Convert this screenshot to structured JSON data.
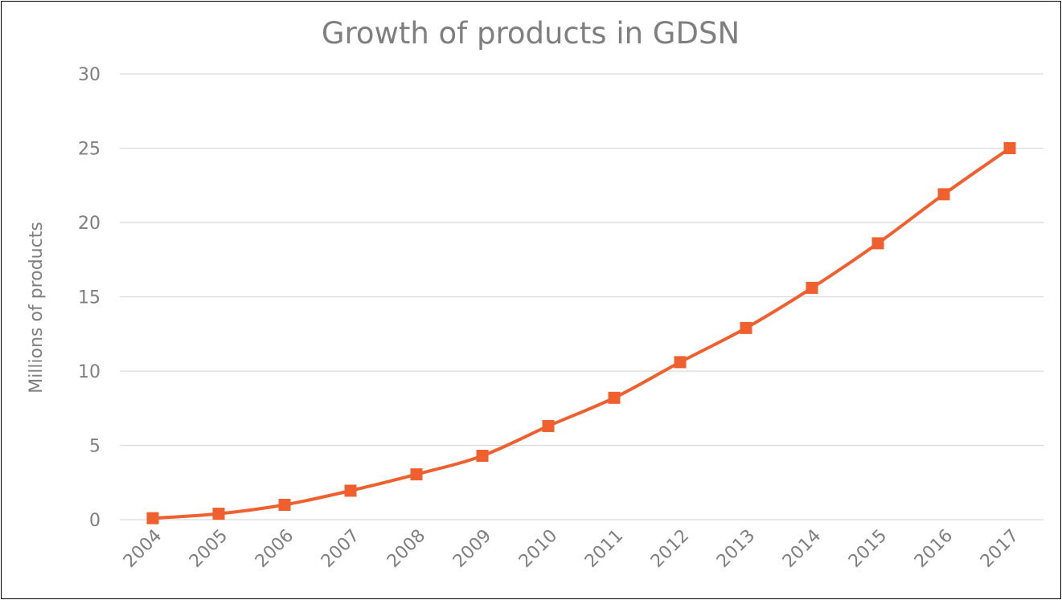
{
  "chart_data": {
    "type": "line",
    "title": "Growth of products in GDSN",
    "xlabel": "",
    "ylabel": "Millions of products",
    "ylim": [
      0,
      30
    ],
    "yticks": [
      "0",
      "5",
      "10",
      "15",
      "20",
      "25",
      "30"
    ],
    "grid": true,
    "legend": "none",
    "categories": [
      "2004",
      "2005",
      "2006",
      "2007",
      "2008",
      "2009",
      "2010",
      "2011",
      "2012",
      "2013",
      "2014",
      "2015",
      "2016",
      "2017"
    ],
    "series": [
      {
        "color": "#f0602f",
        "marker": "square",
        "values": [
          0.1,
          0.4,
          1.0,
          1.95,
          3.05,
          4.3,
          6.3,
          8.2,
          10.6,
          12.9,
          15.6,
          18.6,
          21.9,
          25.0
        ]
      }
    ]
  }
}
